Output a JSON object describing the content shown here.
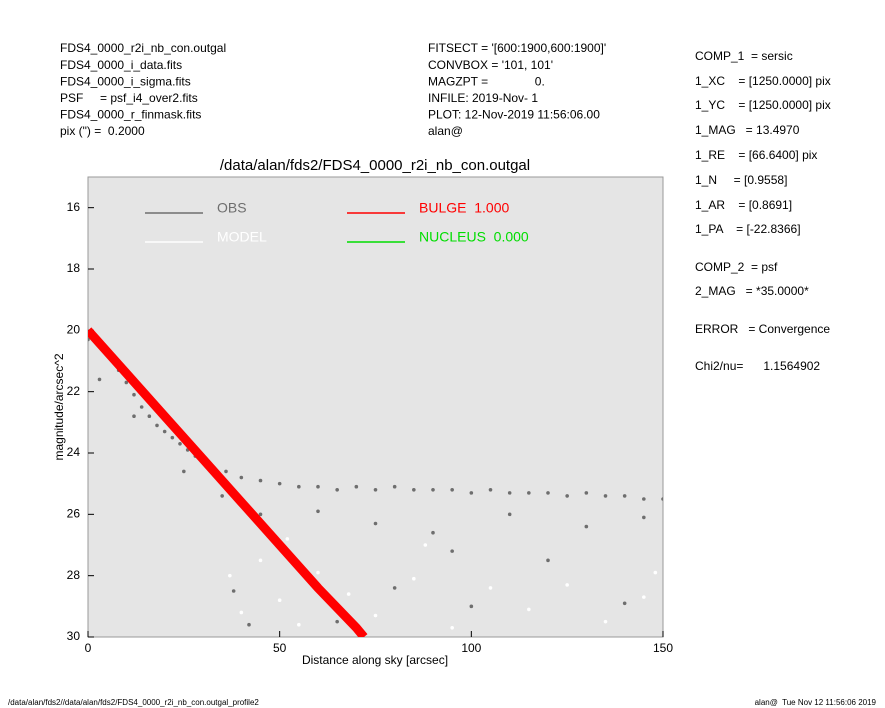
{
  "header": {
    "left": [
      "FDS4_0000_r2i_nb_con.outgal",
      "FDS4_0000_i_data.fits",
      "FDS4_0000_i_sigma.fits",
      "PSF     = psf_i4_over2.fits",
      "FDS4_0000_r_finmask.fits",
      "pix (\") =  0.2000"
    ],
    "middle": [
      "FITSECT = '[600:1900,600:1900]'",
      "CONVBOX = '101, 101'",
      "MAGZPT =              0.",
      "INFILE: 2019-Nov- 1",
      "PLOT: 12-Nov-2019 11:56:06.00",
      "alan@"
    ],
    "right": [
      "COMP_1  = sersic",
      "1_XC    = [1250.0000] pix",
      "1_YC    = [1250.0000] pix",
      "1_MAG   = 13.4970",
      "1_RE    = [66.6400] pix",
      "1_N     = [0.9558]",
      "1_AR    = [0.8691]",
      "1_PA    = [-22.8366]",
      "COMP_2  = psf",
      "2_MAG   = *35.0000*",
      "ERROR   = Convergence",
      "Chi2/nu=      1.1564902"
    ]
  },
  "footer": {
    "left": "/data/alan/fds2//data/alan/fds2/FDS4_0000_r2i_nb_con.outgal_profile2",
    "right": "alan@  Tue Nov 12 11:56:06 2019"
  },
  "chart_data": {
    "type": "scatter",
    "title": "/data/alan/fds2/FDS4_0000_r2i_nb_con.outgal",
    "xlabel": "Distance along sky [arcsec]",
    "ylabel": "magnitude/arcsec^2",
    "xlim": [
      0,
      150
    ],
    "ylim": [
      30,
      15
    ],
    "xticks": [
      0,
      50,
      100,
      150
    ],
    "yticks": [
      16,
      18,
      20,
      22,
      24,
      26,
      28,
      30
    ],
    "series": [
      {
        "name": "OBS",
        "color": "#6e6e6e",
        "style": "points",
        "x": [
          0,
          2,
          4,
          6,
          8,
          10,
          12,
          14,
          16,
          18,
          20,
          22,
          24,
          26,
          28,
          30,
          33,
          36,
          40,
          45,
          50,
          55,
          60,
          65,
          70,
          75,
          80,
          85,
          90,
          95,
          100,
          105,
          110,
          115,
          120,
          125,
          130,
          135,
          140,
          145,
          150,
          3,
          12,
          25,
          35,
          45,
          60,
          75,
          90,
          110,
          130,
          145,
          38,
          42,
          55,
          80,
          100,
          120,
          140,
          65,
          95
        ],
        "values": [
          20.3,
          20.4,
          20.6,
          20.9,
          21.3,
          21.7,
          22.1,
          22.5,
          22.8,
          23.1,
          23.3,
          23.5,
          23.7,
          23.9,
          24.1,
          24.3,
          24.5,
          24.6,
          24.8,
          24.9,
          25.0,
          25.1,
          25.1,
          25.2,
          25.1,
          25.2,
          25.1,
          25.2,
          25.2,
          25.2,
          25.3,
          25.2,
          25.3,
          25.3,
          25.3,
          25.4,
          25.3,
          25.4,
          25.4,
          25.5,
          25.5,
          21.6,
          22.8,
          24.6,
          25.4,
          26.0,
          25.9,
          26.3,
          26.6,
          26.0,
          26.4,
          26.1,
          28.5,
          29.6,
          27.8,
          28.4,
          29.0,
          27.5,
          28.9,
          29.5,
          27.2
        ]
      },
      {
        "name": "MODEL",
        "color": "#ffffff",
        "style": "points",
        "x": [
          37,
          40,
          45,
          50,
          55,
          60,
          68,
          75,
          85,
          95,
          105,
          115,
          125,
          135,
          145,
          148,
          52,
          88
        ],
        "values": [
          28.0,
          29.2,
          27.5,
          28.8,
          29.6,
          27.9,
          28.6,
          29.3,
          28.1,
          29.7,
          28.4,
          29.1,
          28.3,
          29.5,
          28.7,
          27.9,
          26.8,
          27.0
        ]
      },
      {
        "name": "BULGE  1.000",
        "color": "#ff0000",
        "style": "line",
        "x": [
          0,
          10,
          20,
          30,
          40,
          50,
          60,
          70,
          72
        ],
        "values": [
          20.0,
          21.4,
          22.8,
          24.2,
          25.6,
          27.0,
          28.4,
          29.7,
          30.0
        ]
      },
      {
        "name": "NUCLEUS  0.000",
        "color": "#00dd00",
        "style": "line",
        "x": [],
        "values": []
      }
    ]
  }
}
